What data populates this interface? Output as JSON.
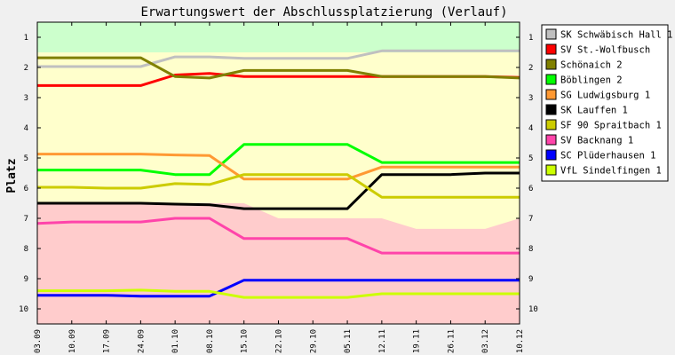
{
  "chart_data": {
    "type": "line",
    "title": "Erwartungswert der Abschlussplatzierung (Verlauf)",
    "ylabel": "Platz",
    "xlabel": "",
    "categories": [
      "03.09",
      "10.09",
      "17.09",
      "24.09",
      "01.10",
      "08.10",
      "15.10",
      "22.10",
      "29.10",
      "05.11",
      "12.11",
      "19.11",
      "26.11",
      "03.12",
      "10.12"
    ],
    "ylim": [
      0.5,
      10.5
    ],
    "y_inverted": true,
    "yticks": [
      1,
      2,
      3,
      4,
      5,
      6,
      7,
      8,
      9,
      10
    ],
    "legend_position": "right",
    "background_zones": {
      "promotion": {
        "color": "#ccffcc",
        "to": [
          1.5,
          1.5,
          1.5,
          1.5,
          1.5,
          1.5,
          1.5,
          1.5,
          1.5,
          1.5,
          1.5,
          1.5,
          1.5,
          1.5,
          1.5
        ]
      },
      "middle": {
        "color": "#ffffcc"
      },
      "relegation": {
        "color": "#ffcccc",
        "from": [
          6.5,
          6.5,
          6.5,
          6.5,
          6.5,
          6.5,
          6.5,
          7.0,
          7.0,
          7.0,
          7.0,
          7.35,
          7.35,
          7.35,
          7.0
        ]
      }
    },
    "series": [
      {
        "name": "SK Schwäbisch Hall 1",
        "color": "#c0c0c0",
        "values": [
          1.97,
          1.97,
          1.97,
          1.97,
          1.65,
          1.65,
          1.7,
          1.7,
          1.7,
          1.7,
          1.45,
          1.45,
          1.45,
          1.45,
          1.45
        ]
      },
      {
        "name": "SV St.-Wolfbusch",
        "color": "#ff0000",
        "values": [
          2.6,
          2.6,
          2.6,
          2.6,
          2.25,
          2.2,
          2.3,
          2.3,
          2.3,
          2.3,
          2.3,
          2.3,
          2.3,
          2.3,
          2.33
        ]
      },
      {
        "name": "Schönaich 2",
        "color": "#808000",
        "values": [
          1.68,
          1.68,
          1.68,
          1.68,
          2.3,
          2.35,
          2.1,
          2.1,
          2.1,
          2.1,
          2.3,
          2.3,
          2.3,
          2.3,
          2.35
        ]
      },
      {
        "name": "Böblingen 2",
        "color": "#00ff00",
        "values": [
          5.4,
          5.4,
          5.4,
          5.4,
          5.55,
          5.55,
          4.55,
          4.55,
          4.55,
          4.55,
          5.15,
          5.15,
          5.15,
          5.15,
          5.15
        ]
      },
      {
        "name": "SG Ludwigsburg 1",
        "color": "#ff9933",
        "values": [
          4.87,
          4.87,
          4.87,
          4.87,
          4.9,
          4.92,
          5.7,
          5.7,
          5.7,
          5.7,
          5.3,
          5.3,
          5.3,
          5.3,
          5.3
        ]
      },
      {
        "name": "SK Lauffen 1",
        "color": "#000000",
        "values": [
          6.5,
          6.5,
          6.5,
          6.5,
          6.53,
          6.55,
          6.68,
          6.68,
          6.68,
          6.68,
          5.55,
          5.55,
          5.55,
          5.5,
          5.5
        ]
      },
      {
        "name": "SF 90 Spraitbach 1",
        "color": "#cccc00",
        "values": [
          5.97,
          5.97,
          6.0,
          6.0,
          5.85,
          5.88,
          5.55,
          5.55,
          5.55,
          5.55,
          6.3,
          6.3,
          6.3,
          6.3,
          6.3
        ]
      },
      {
        "name": "SV Backnang 1",
        "color": "#ff44aa",
        "values": [
          7.17,
          7.12,
          7.12,
          7.12,
          7.0,
          7.0,
          7.67,
          7.67,
          7.67,
          7.67,
          8.15,
          8.15,
          8.15,
          8.15,
          8.15
        ]
      },
      {
        "name": "SC Plüderhausen 1",
        "color": "#0000ff",
        "values": [
          9.55,
          9.55,
          9.55,
          9.58,
          9.58,
          9.58,
          9.05,
          9.05,
          9.05,
          9.05,
          9.05,
          9.05,
          9.05,
          9.05,
          9.05
        ]
      },
      {
        "name": "VfL Sindelfingen 1",
        "color": "#ccff00",
        "values": [
          9.4,
          9.4,
          9.4,
          9.38,
          9.42,
          9.42,
          9.62,
          9.62,
          9.62,
          9.62,
          9.5,
          9.5,
          9.5,
          9.5,
          9.5
        ]
      }
    ]
  }
}
